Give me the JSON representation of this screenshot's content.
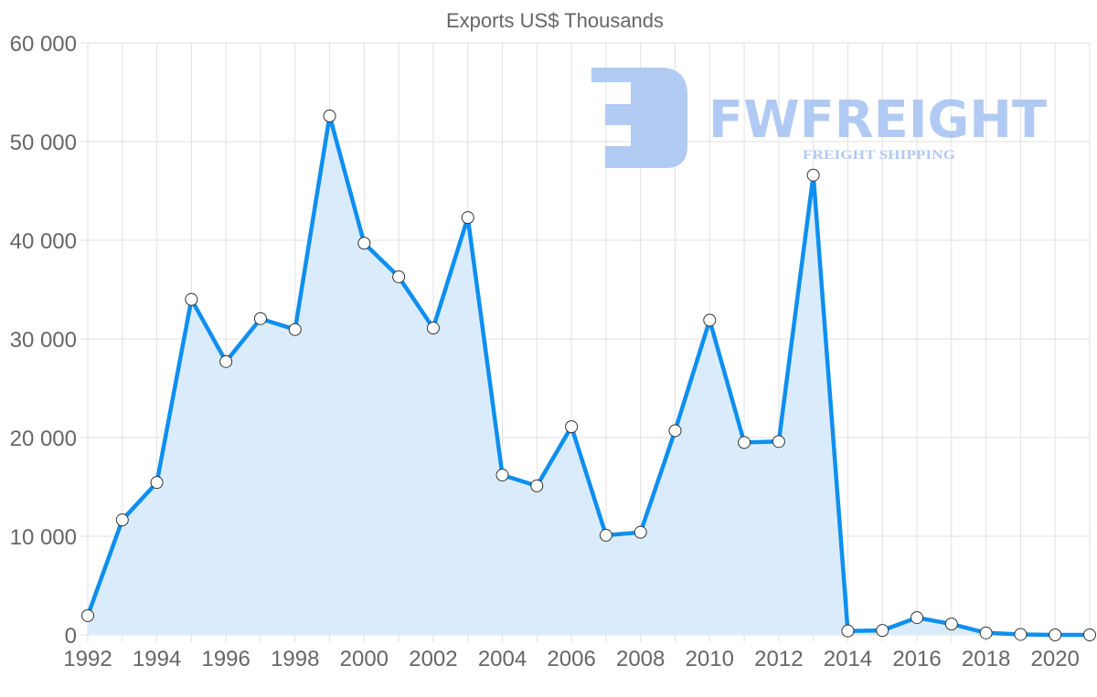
{
  "chart_data": {
    "type": "area",
    "title": "Exports US$ Thousands",
    "xlabel": "",
    "ylabel": "",
    "ylim": [
      0,
      60000
    ],
    "yticks": [
      0,
      10000,
      20000,
      30000,
      40000,
      50000,
      60000
    ],
    "ytick_labels": [
      "0",
      "10 000",
      "20 000",
      "30 000",
      "40 000",
      "50 000",
      "60 000"
    ],
    "xtick_labels": [
      "1992",
      "1994",
      "1996",
      "1998",
      "2000",
      "2002",
      "2004",
      "2006",
      "2008",
      "2010",
      "2012",
      "2014",
      "2016",
      "2018",
      "2020"
    ],
    "grid": true,
    "legend": null,
    "categories": [
      1992,
      1993,
      1994,
      1995,
      1996,
      1997,
      1998,
      1999,
      2000,
      2001,
      2002,
      2003,
      2004,
      2005,
      2006,
      2007,
      2008,
      2009,
      2010,
      2011,
      2012,
      2013,
      2014,
      2015,
      2016,
      2017,
      2018,
      2019,
      2020,
      2021
    ],
    "series": [
      {
        "name": "Exports",
        "values": [
          1950,
          11650,
          15450,
          34000,
          27700,
          32050,
          30950,
          52600,
          39700,
          36300,
          31100,
          42300,
          16200,
          15100,
          21100,
          10100,
          10400,
          20700,
          31900,
          19500,
          19600,
          46600,
          400,
          450,
          1750,
          1100,
          200,
          50,
          0,
          0
        ]
      }
    ],
    "colors": {
      "line": "#0e8ff0",
      "fill": "#d8ebfc",
      "point_fill": "#ffffff",
      "point_stroke": "#333333"
    }
  },
  "watermark": {
    "brand": "FWFREIGHT",
    "tagline": "FREIGHT SHIPPING",
    "color": "#a9c5f2"
  }
}
